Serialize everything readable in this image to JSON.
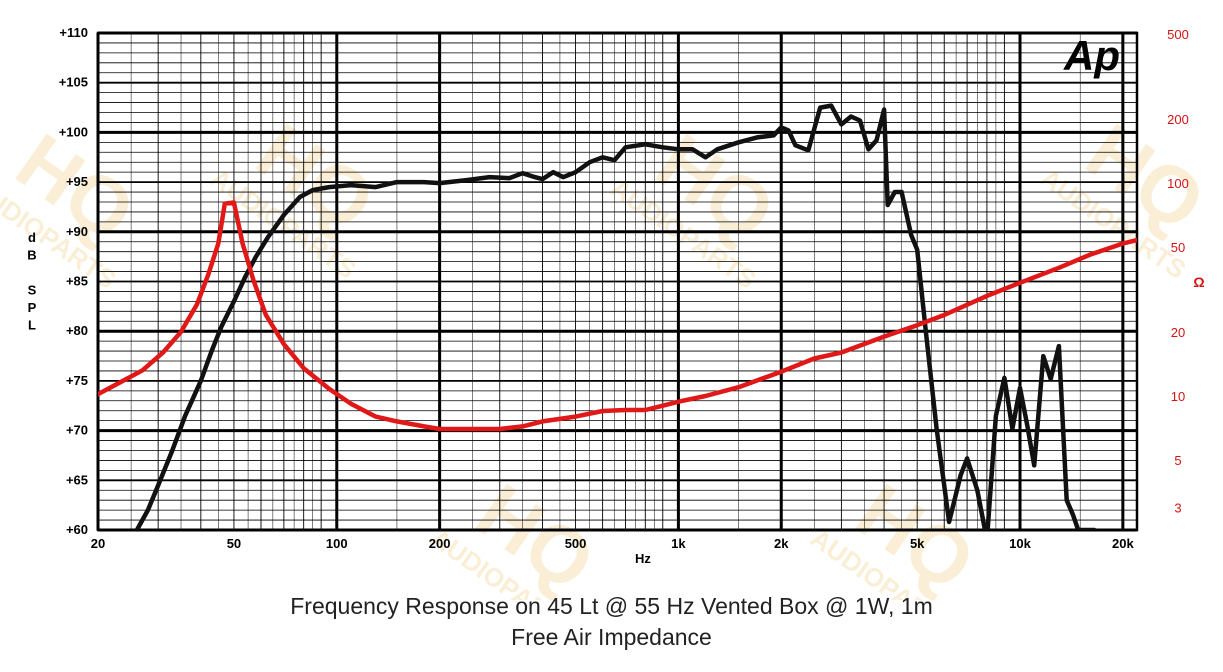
{
  "captions": {
    "line1": "Frequency Response on 45 Lt @ 55 Hz Vented Box @ 1W, 1m",
    "line2": "Free Air Impedance"
  },
  "logo": {
    "text": "Ap"
  },
  "watermark": {
    "brand": "HQ",
    "sub": "AUDIOPARTS"
  },
  "colors": {
    "spl": "#111111",
    "impedance": "#e01818",
    "grid": "#000000",
    "right_axis": "#d41414"
  },
  "chart_data": {
    "type": "line",
    "x_scale": "log",
    "xlim": [
      20,
      22000
    ],
    "xlabel": "Hz",
    "x_ticks": [
      {
        "v": 20,
        "label": "20"
      },
      {
        "v": 50,
        "label": "50"
      },
      {
        "v": 100,
        "label": "100"
      },
      {
        "v": 200,
        "label": "200"
      },
      {
        "v": 500,
        "label": "500"
      },
      {
        "v": 1000,
        "label": "1k"
      },
      {
        "v": 2000,
        "label": "2k"
      },
      {
        "v": 5000,
        "label": "5k"
      },
      {
        "v": 10000,
        "label": "10k"
      },
      {
        "v": 20000,
        "label": "20k"
      }
    ],
    "y_left": {
      "label": [
        "d",
        "B",
        "",
        "S",
        "P",
        "L"
      ],
      "range": [
        60,
        110
      ],
      "ticks": [
        {
          "v": 110,
          "label": "+110"
        },
        {
          "v": 105,
          "label": "+105"
        },
        {
          "v": 100,
          "label": "+100"
        },
        {
          "v": 95,
          "label": "+95"
        },
        {
          "v": 90,
          "label": "+90"
        },
        {
          "v": 85,
          "label": "+85"
        },
        {
          "v": 80,
          "label": "+80"
        },
        {
          "v": 75,
          "label": "+75"
        },
        {
          "v": 70,
          "label": "+70"
        },
        {
          "v": 65,
          "label": "+65"
        },
        {
          "v": 60,
          "label": "+60"
        }
      ]
    },
    "y_right": {
      "label": "Ω",
      "scale": "log",
      "ticks": [
        {
          "v": 500,
          "label": "500"
        },
        {
          "v": 200,
          "label": "200"
        },
        {
          "v": 100,
          "label": "100"
        },
        {
          "v": 50,
          "label": "50"
        },
        {
          "v": 20,
          "label": "20"
        },
        {
          "v": 10,
          "label": "10"
        },
        {
          "v": 5,
          "label": "5"
        },
        {
          "v": 3,
          "label": "3"
        }
      ]
    },
    "grid": true,
    "series": [
      {
        "axis": "left",
        "color": "#111111",
        "x": [
          26,
          28,
          30,
          33,
          36,
          40,
          43,
          46,
          50,
          54,
          58,
          63,
          70,
          78,
          85,
          95,
          110,
          130,
          150,
          180,
          200,
          240,
          280,
          320,
          350,
          380,
          400,
          430,
          460,
          500,
          550,
          600,
          650,
          700,
          800,
          900,
          1000,
          1100,
          1200,
          1300,
          1500,
          1700,
          1900,
          2000,
          2100,
          2200,
          2400,
          2600,
          2800,
          3000,
          3200,
          3400,
          3600,
          3800,
          4000,
          4100,
          4300,
          4500,
          4800,
          5000,
          5300,
          5700,
          6200,
          6700,
          7000,
          7500,
          8000,
          8500,
          9000,
          9500,
          10000,
          10500,
          11000,
          11700,
          12300,
          13000,
          13700,
          14300,
          14800,
          15500,
          16500
        ],
        "y": [
          60,
          62,
          64.5,
          68,
          71.5,
          75,
          78,
          80.5,
          83,
          85.5,
          87.5,
          89.5,
          91.7,
          93.5,
          94.2,
          94.5,
          94.7,
          94.5,
          95,
          95,
          94.9,
          95.2,
          95.5,
          95.4,
          95.9,
          95.5,
          95.3,
          96,
          95.5,
          96,
          97,
          97.5,
          97.2,
          98.5,
          98.8,
          98.5,
          98.3,
          98.3,
          97.5,
          98.3,
          99,
          99.5,
          99.7,
          100.5,
          100.2,
          98.7,
          98.2,
          102.5,
          102.7,
          100.8,
          101.6,
          101.2,
          98.3,
          99.2,
          102.3,
          92.7,
          94,
          94,
          89.7,
          88.2,
          80,
          70.2,
          60.8,
          65.5,
          67.2,
          64,
          59,
          71.5,
          75.3,
          70.2,
          74.3,
          70.5,
          66.5,
          77.5,
          75.2,
          78.5,
          63,
          61.5,
          60,
          60,
          60
        ]
      },
      {
        "axis": "right",
        "color": "#e01818",
        "x": [
          20,
          23,
          27,
          31,
          35,
          39,
          42,
          45,
          47,
          50,
          53,
          57,
          62,
          70,
          80,
          95,
          110,
          130,
          150,
          180,
          200,
          250,
          300,
          350,
          400,
          500,
          600,
          700,
          800,
          900,
          1000,
          1200,
          1500,
          2000,
          2500,
          3000,
          4000,
          5000,
          6000,
          8000,
          10000,
          13000,
          16000,
          20000,
          22000
        ],
        "y": [
          10.2,
          11.5,
          13.2,
          16,
          20,
          27,
          37,
          52,
          80,
          81,
          52,
          35,
          24,
          17.5,
          13.5,
          10.8,
          9.2,
          8,
          7.6,
          7.2,
          7,
          7,
          7,
          7.2,
          7.6,
          8,
          8.5,
          8.6,
          8.6,
          9,
          9.4,
          10,
          11,
          13,
          15,
          16,
          19,
          21.5,
          24,
          29.5,
          34,
          40,
          46,
          52,
          54
        ]
      }
    ]
  }
}
